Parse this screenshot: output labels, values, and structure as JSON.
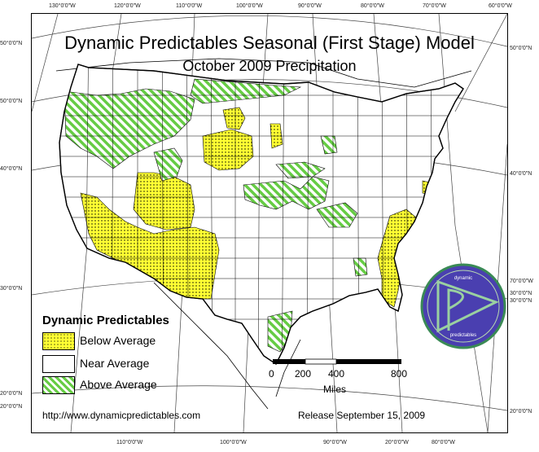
{
  "map": {
    "title": "Dynamic Predictables Seasonal (First Stage) Model",
    "subtitle": "October 2009 Precipitation"
  },
  "graticule": {
    "top_labels": [
      "130°0'0\"W",
      "120°0'0\"W",
      "110°0'0\"W",
      "100°0'0\"W",
      "90°0'0\"W",
      "80°0'0\"W",
      "70°0'0\"W",
      "60°0'0\"W"
    ],
    "bottom_labels": [
      "110°0'0\"W",
      "100°0'0\"W",
      "90°0'0\"W",
      "20°0'0\"W",
      "80°0'0\"W"
    ],
    "left_labels": [
      "50°0'0\"N",
      "50°0'0\"N",
      "40°0'0\"N",
      "30°0'0\"N",
      "20°0'0\"N",
      "20°0'0\"N"
    ],
    "right_labels": [
      "50°0'0\"N",
      "40°0'0\"N",
      "70°0'0\"W",
      "30°0'0\"N",
      "30°0'0\"N",
      "20°0'0\"N"
    ]
  },
  "legend": {
    "heading": "Dynamic Predictables",
    "items": [
      {
        "label": "Below Average",
        "fill": "#ffff33"
      },
      {
        "label": "Near Average",
        "fill": "#ffffff"
      },
      {
        "label": "Above Average",
        "fill": "#66cc44"
      }
    ]
  },
  "scale_bar": {
    "ticks": [
      "0",
      "200",
      "400",
      "800"
    ],
    "units": "Miles"
  },
  "footer": {
    "website": "http://www.dynamicpredictables.com",
    "release": "Release September 15, 2009"
  },
  "logo": {
    "top_text": "dynamic",
    "bottom_text": "predictables"
  },
  "colors": {
    "below": "#ffff33",
    "near": "#ffffff",
    "above": "#66cc44",
    "boundary": "#000000",
    "logo_fill": "#4a3fb0",
    "logo_ring": "#3a8a55"
  }
}
